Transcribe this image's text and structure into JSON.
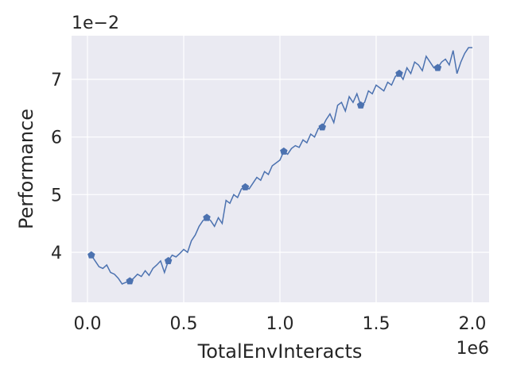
{
  "chart_data": {
    "type": "line",
    "x_label": "TotalEnvInteracts",
    "y_label": "Performance",
    "x_offset_label": "1e6",
    "y_offset_label": "1e−2",
    "x": [
      20000,
      40000,
      60000,
      80000,
      100000,
      120000,
      140000,
      160000,
      180000,
      200000,
      220000,
      240000,
      260000,
      280000,
      300000,
      320000,
      340000,
      360000,
      380000,
      400000,
      420000,
      440000,
      460000,
      480000,
      500000,
      520000,
      540000,
      560000,
      580000,
      600000,
      620000,
      640000,
      660000,
      680000,
      700000,
      720000,
      740000,
      760000,
      780000,
      800000,
      820000,
      840000,
      860000,
      880000,
      900000,
      920000,
      940000,
      960000,
      980000,
      1000000,
      1020000,
      1040000,
      1060000,
      1080000,
      1100000,
      1120000,
      1140000,
      1160000,
      1180000,
      1200000,
      1220000,
      1240000,
      1260000,
      1280000,
      1300000,
      1320000,
      1340000,
      1360000,
      1380000,
      1400000,
      1420000,
      1440000,
      1460000,
      1480000,
      1500000,
      1520000,
      1540000,
      1560000,
      1580000,
      1600000,
      1620000,
      1640000,
      1660000,
      1680000,
      1700000,
      1720000,
      1740000,
      1760000,
      1780000,
      1800000,
      1820000,
      1840000,
      1860000,
      1880000,
      1900000,
      1920000,
      1940000,
      1960000,
      1980000,
      2000000
    ],
    "series": [
      {
        "color": "#4c72b0",
        "marker": "pentagon",
        "markevery": 10,
        "values": [
          0.0395,
          0.0385,
          0.0375,
          0.0372,
          0.0378,
          0.0365,
          0.0362,
          0.0355,
          0.0345,
          0.0348,
          0.035,
          0.0355,
          0.0362,
          0.0358,
          0.0368,
          0.036,
          0.0372,
          0.0378,
          0.0385,
          0.0365,
          0.0385,
          0.0395,
          0.0392,
          0.0398,
          0.0405,
          0.04,
          0.042,
          0.043,
          0.0445,
          0.0455,
          0.046,
          0.0455,
          0.0445,
          0.046,
          0.045,
          0.049,
          0.0485,
          0.05,
          0.0495,
          0.051,
          0.0513,
          0.051,
          0.052,
          0.053,
          0.0525,
          0.054,
          0.0535,
          0.055,
          0.0555,
          0.056,
          0.0575,
          0.057,
          0.058,
          0.0585,
          0.0582,
          0.0595,
          0.059,
          0.0605,
          0.06,
          0.0615,
          0.0617,
          0.063,
          0.064,
          0.0625,
          0.0655,
          0.066,
          0.0645,
          0.067,
          0.066,
          0.0675,
          0.0655,
          0.066,
          0.068,
          0.0675,
          0.069,
          0.0685,
          0.068,
          0.0695,
          0.069,
          0.0705,
          0.071,
          0.07,
          0.072,
          0.071,
          0.073,
          0.0725,
          0.0715,
          0.074,
          0.073,
          0.072,
          0.072,
          0.073,
          0.0735,
          0.0725,
          0.075,
          0.071,
          0.073,
          0.0745,
          0.0755,
          0.0755
        ]
      }
    ],
    "xlim": [
      -82600,
      2087000
    ],
    "ylim": [
      0.03133,
      0.07757
    ],
    "xticks": [
      {
        "value": 0,
        "label": "0.0"
      },
      {
        "value": 500000,
        "label": "0.5"
      },
      {
        "value": 1000000,
        "label": "1.0"
      },
      {
        "value": 1500000,
        "label": "1.5"
      },
      {
        "value": 2000000,
        "label": "2.0"
      }
    ],
    "yticks": [
      {
        "value": 0.04,
        "label": "4"
      },
      {
        "value": 0.05,
        "label": "5"
      },
      {
        "value": 0.06,
        "label": "6"
      },
      {
        "value": 0.07,
        "label": "7"
      }
    ],
    "grid": true
  }
}
